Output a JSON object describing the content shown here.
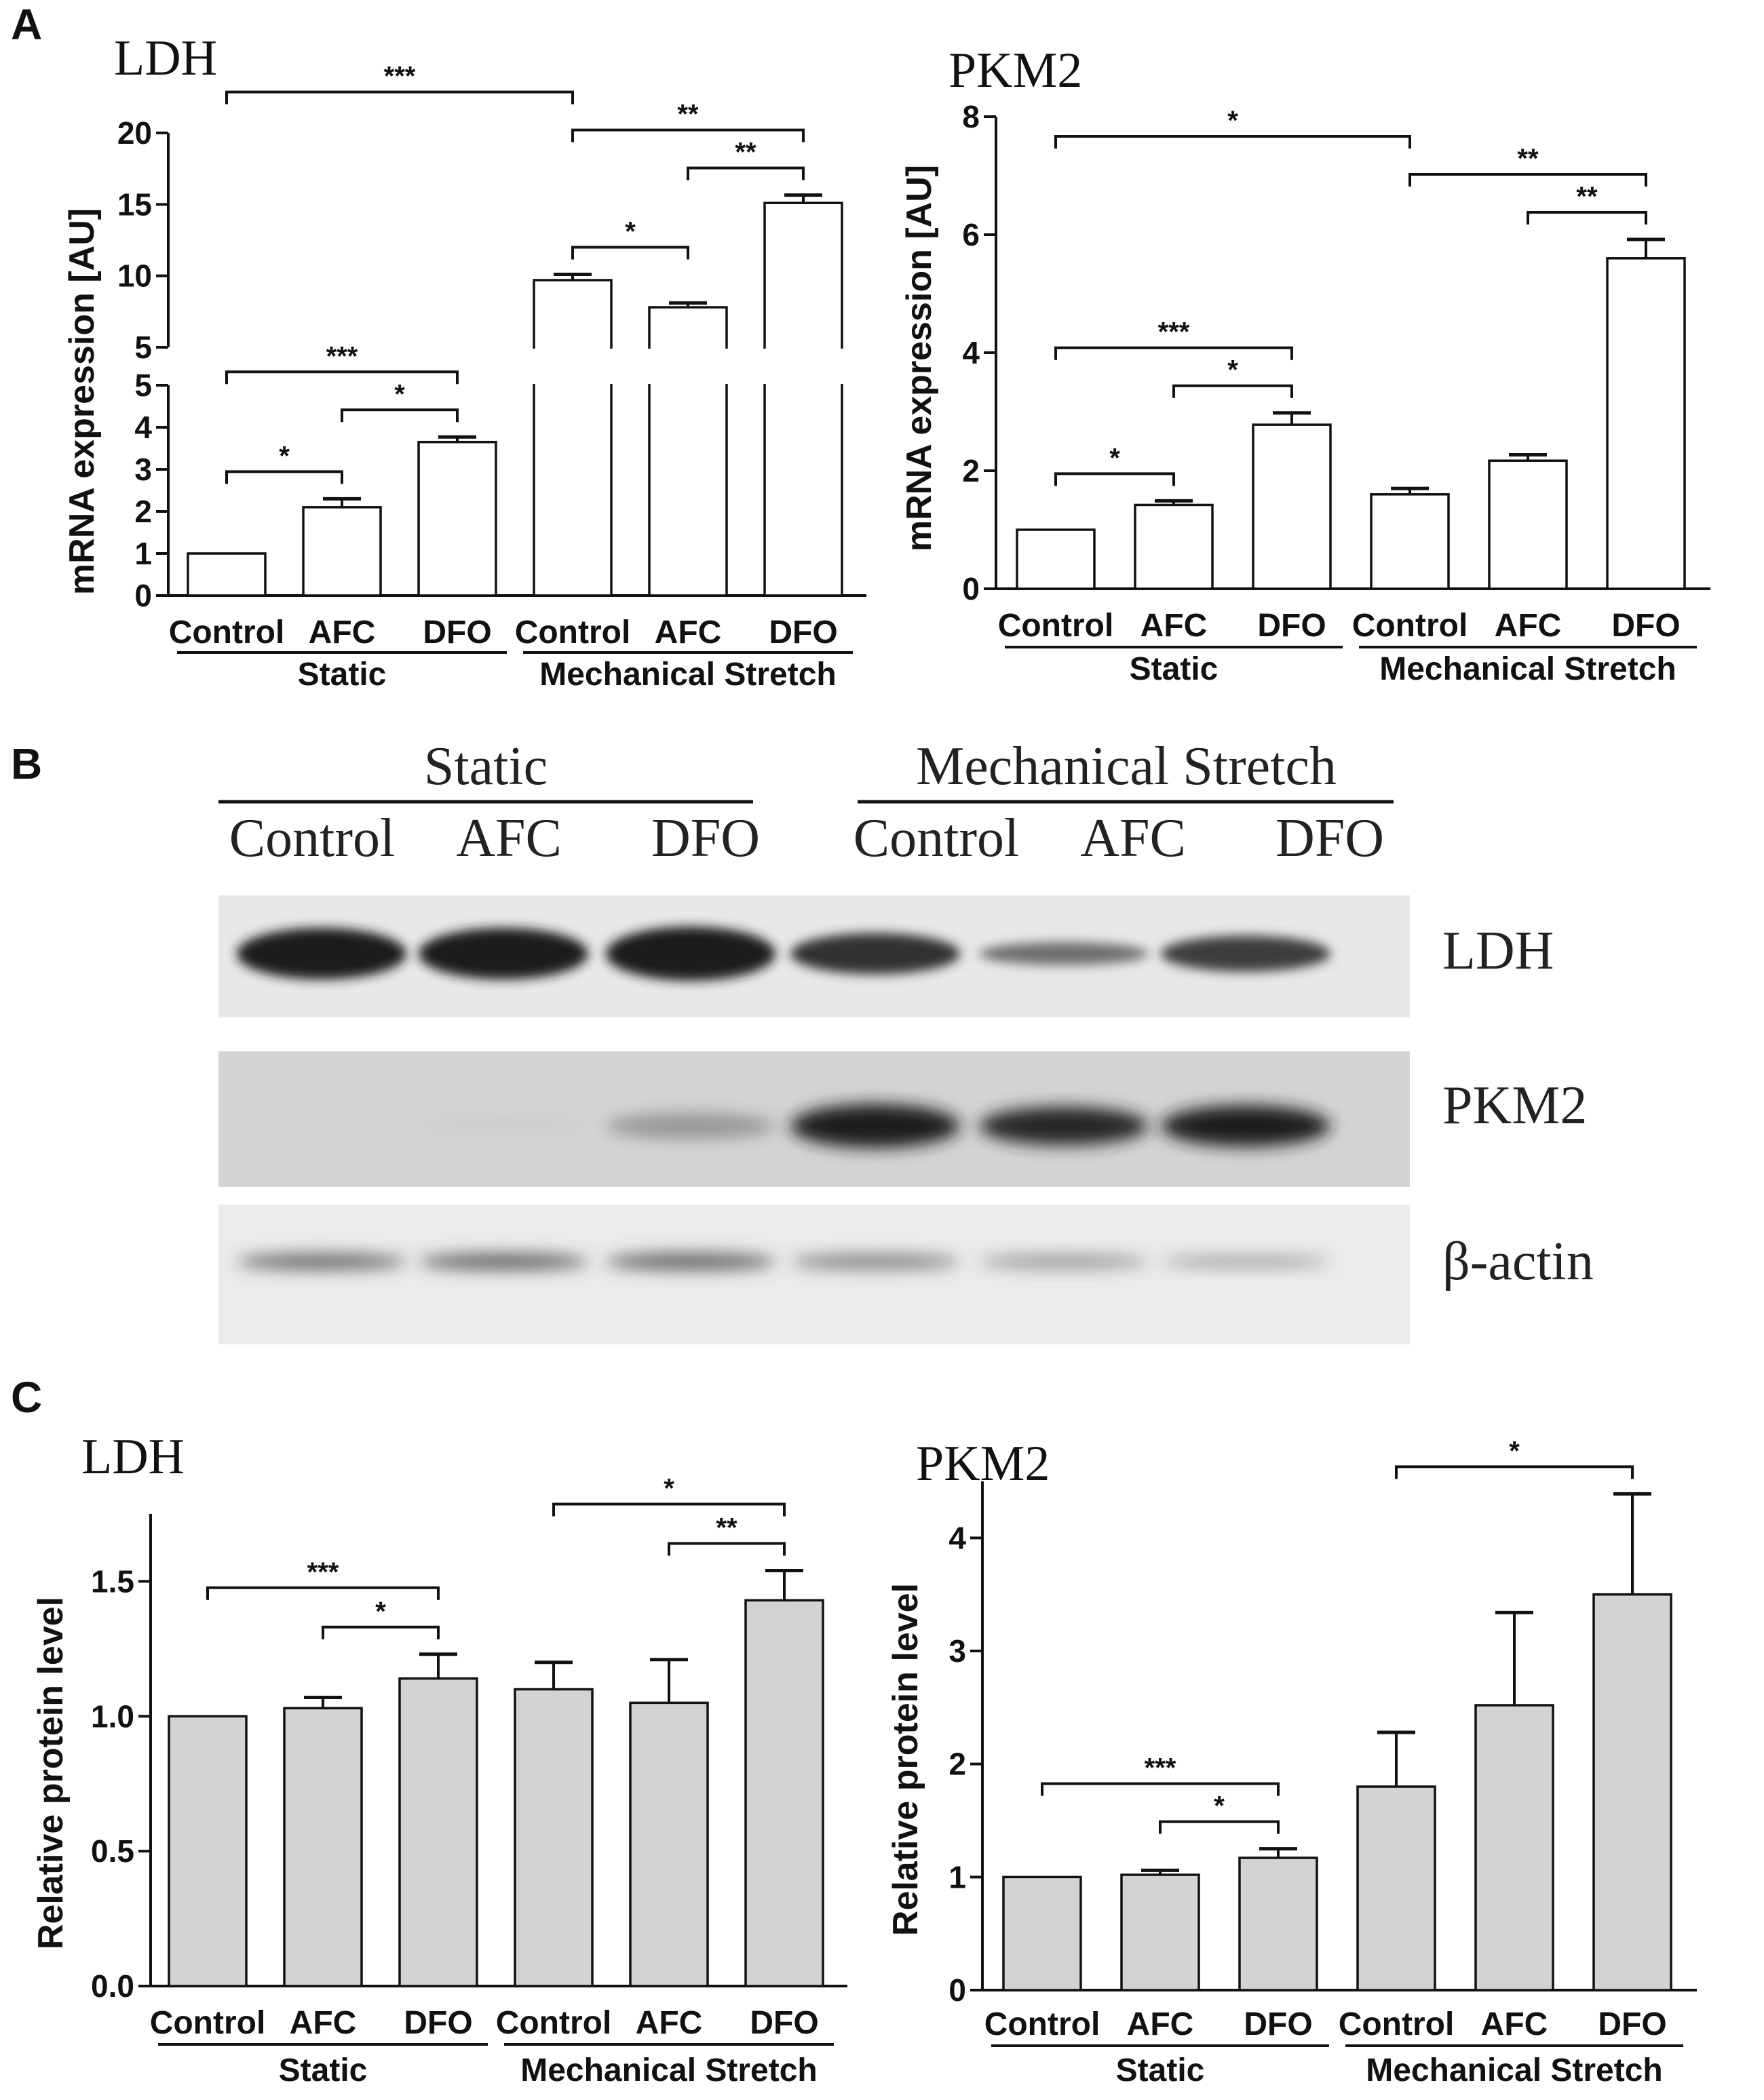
{
  "panels": {
    "A": "A",
    "B": "B",
    "C": "C"
  },
  "chart_data": [
    {
      "type": "bar",
      "panel": "A",
      "title": "LDH",
      "ylabel": "mRNA expression [AU]",
      "categories": [
        "Control",
        "AFC",
        "DFO",
        "Control",
        "AFC",
        "DFO"
      ],
      "groups": [
        "Static",
        "Mechanical Stretch"
      ],
      "values": [
        1.0,
        2.1,
        3.65,
        9.7,
        7.8,
        15.1
      ],
      "errors": [
        0,
        0.2,
        0.12,
        0.4,
        0.3,
        0.55
      ],
      "y_axis_break": {
        "lower_range": [
          0,
          5
        ],
        "upper_range": [
          5,
          20
        ]
      },
      "yticks_lower": [
        "0",
        "1",
        "2",
        "3",
        "4",
        "5"
      ],
      "yticks_upper": [
        "5",
        "10",
        "15",
        "20"
      ],
      "bar_color": "#ffffff",
      "significance": [
        {
          "from": 0,
          "to": 3,
          "label": "***"
        },
        {
          "from": 3,
          "to": 5,
          "label": "**"
        },
        {
          "from": 3,
          "to": 4,
          "label": "*"
        },
        {
          "from": 4,
          "to": 5,
          "label": "**"
        },
        {
          "from": 0,
          "to": 2,
          "label": "***"
        },
        {
          "from": 0,
          "to": 1,
          "label": "*"
        },
        {
          "from": 1,
          "to": 2,
          "label": "*"
        }
      ]
    },
    {
      "type": "bar",
      "panel": "A",
      "title": "PKM2",
      "ylabel": "mRNA expression [AU]",
      "categories": [
        "Control",
        "AFC",
        "DFO",
        "Control",
        "AFC",
        "DFO"
      ],
      "groups": [
        "Static",
        "Mechanical Stretch"
      ],
      "values": [
        1.0,
        1.42,
        2.78,
        1.6,
        2.17,
        5.6
      ],
      "errors": [
        0,
        0.07,
        0.2,
        0.1,
        0.1,
        0.32
      ],
      "ylim": [
        0,
        8
      ],
      "yticks": [
        "0",
        "2",
        "4",
        "6",
        "8"
      ],
      "bar_color": "#ffffff",
      "significance": [
        {
          "from": 0,
          "to": 3,
          "label": "*"
        },
        {
          "from": 3,
          "to": 5,
          "label": "**"
        },
        {
          "from": 4,
          "to": 5,
          "label": "**"
        },
        {
          "from": 0,
          "to": 2,
          "label": "***"
        },
        {
          "from": 0,
          "to": 1,
          "label": "*"
        },
        {
          "from": 1,
          "to": 2,
          "label": "*"
        }
      ]
    },
    {
      "type": "bar",
      "panel": "C",
      "title": "LDH",
      "ylabel": "Relative protein level",
      "categories": [
        "Control",
        "AFC",
        "DFO",
        "Control",
        "AFC",
        "DFO"
      ],
      "groups": [
        "Static",
        "Mechanical Stretch"
      ],
      "values": [
        1.0,
        1.03,
        1.14,
        1.1,
        1.05,
        1.43
      ],
      "errors": [
        0,
        0.04,
        0.09,
        0.1,
        0.16,
        0.11
      ],
      "ylim": [
        0,
        1.75
      ],
      "yticks": [
        "0.0",
        "0.5",
        "1.0",
        "1.5"
      ],
      "bar_color": "#d3d3d3",
      "significance": [
        {
          "from": 3,
          "to": 5,
          "label": "*"
        },
        {
          "from": 4,
          "to": 5,
          "label": "**"
        },
        {
          "from": 0,
          "to": 2,
          "label": "***"
        },
        {
          "from": 1,
          "to": 2,
          "label": "*"
        }
      ]
    },
    {
      "type": "bar",
      "panel": "C",
      "title": "PKM2",
      "ylabel": "Relative protein level",
      "categories": [
        "Control",
        "AFC",
        "DFO",
        "Control",
        "AFC",
        "DFO"
      ],
      "groups": [
        "Static",
        "Mechanical Stretch"
      ],
      "values": [
        1.0,
        1.02,
        1.17,
        1.8,
        2.52,
        3.5
      ],
      "errors": [
        0,
        0.04,
        0.08,
        0.48,
        0.82,
        0.89
      ],
      "ylim": [
        0,
        4.5
      ],
      "yticks": [
        "0",
        "1",
        "2",
        "3",
        "4"
      ],
      "bar_color": "#d3d3d3",
      "significance": [
        {
          "from": 3,
          "to": 5,
          "label": "*"
        },
        {
          "from": 0,
          "to": 2,
          "label": "***"
        },
        {
          "from": 1,
          "to": 2,
          "label": "*"
        }
      ]
    }
  ],
  "western_blot": {
    "groups": [
      "Static",
      "Mechanical Stretch"
    ],
    "lanes": [
      "Control",
      "AFC",
      "DFO",
      "Control",
      "AFC",
      "DFO"
    ],
    "rows": [
      {
        "label": "LDH",
        "intensities": [
          0.95,
          0.95,
          0.95,
          0.85,
          0.55,
          0.8
        ],
        "thickness": [
          1.0,
          1.0,
          1.05,
          0.8,
          0.45,
          0.7
        ],
        "background": "#e8e8e8"
      },
      {
        "label": "PKM2",
        "intensities": [
          0.0,
          0.08,
          0.35,
          0.95,
          0.9,
          0.95
        ],
        "thickness": [
          0.0,
          0.3,
          0.5,
          0.85,
          0.75,
          0.8
        ],
        "background": "#d4d4d4"
      },
      {
        "label": "β-actin",
        "intensities": [
          0.6,
          0.65,
          0.6,
          0.45,
          0.35,
          0.3
        ],
        "thickness": [
          0.45,
          0.45,
          0.5,
          0.45,
          0.4,
          0.35
        ],
        "background": "#ebebeb"
      }
    ]
  }
}
